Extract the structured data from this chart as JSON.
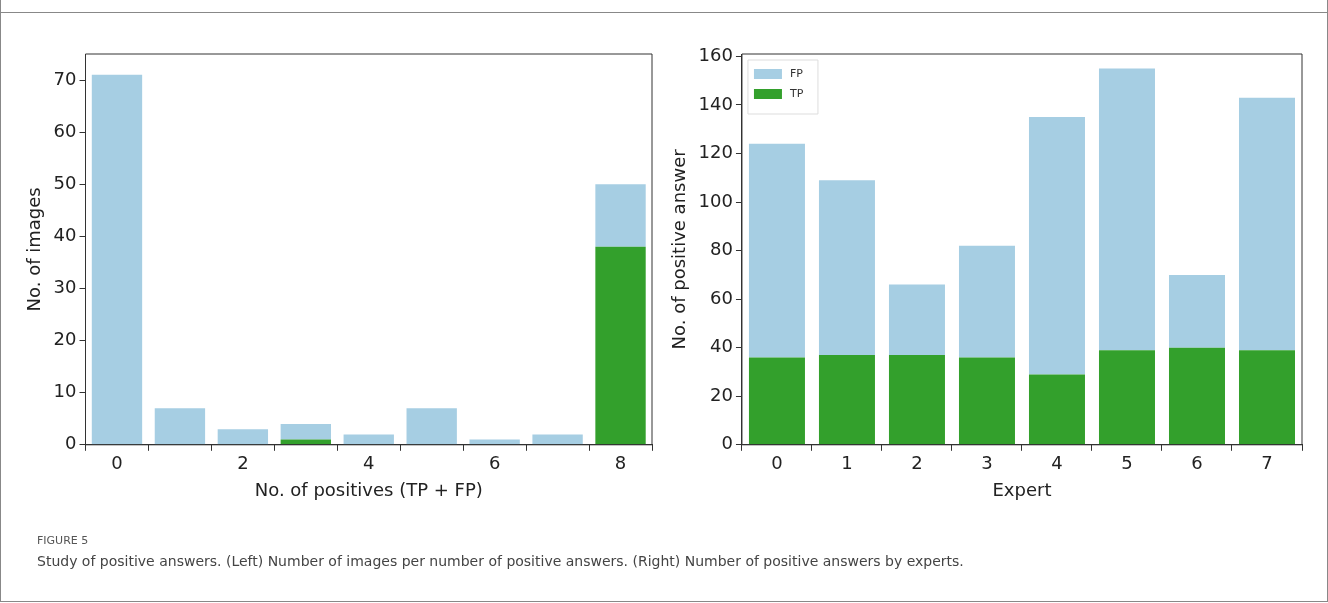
{
  "chart_data": [
    {
      "type": "bar",
      "xlabel": "No. of positives (TP + FP)",
      "ylabel": "No. of images",
      "categories": [
        "0",
        null,
        "2",
        null,
        "4",
        null,
        "6",
        null,
        "8"
      ],
      "stacked": true,
      "ylim": [
        0,
        75
      ],
      "yticks": [
        0,
        10,
        20,
        30,
        40,
        50,
        60,
        70
      ],
      "grid": false,
      "legend": false,
      "series": [
        {
          "color": "#33a02c",
          "values": [
            0,
            0,
            0,
            1,
            0,
            0,
            0,
            0,
            38
          ]
        },
        {
          "color": "#a6cee3",
          "values": [
            71,
            7,
            3,
            3,
            2,
            7,
            1,
            2,
            12
          ]
        }
      ]
    },
    {
      "type": "bar",
      "xlabel": "Expert",
      "ylabel": "No. of positive answer",
      "categories": [
        "0",
        "1",
        "2",
        "3",
        "4",
        "5",
        "6",
        "7"
      ],
      "stacked": true,
      "ylim": [
        0,
        161
      ],
      "yticks": [
        0,
        20,
        40,
        60,
        80,
        100,
        120,
        140,
        160
      ],
      "grid": false,
      "legend": "top left",
      "series": [
        {
          "name": "TP",
          "color": "#33a02c",
          "values": [
            36,
            37,
            37,
            36,
            29,
            39,
            40,
            39
          ]
        },
        {
          "name": "FP",
          "color": "#a6cee3",
          "values": [
            88,
            72,
            29,
            46,
            106,
            116,
            30,
            104
          ]
        }
      ],
      "annotations": [
        "FIGURE 5",
        "Study of positive answers. (Left) Number of images per number of positive answers. (Right) Number of positive answers by experts."
      ]
    }
  ]
}
